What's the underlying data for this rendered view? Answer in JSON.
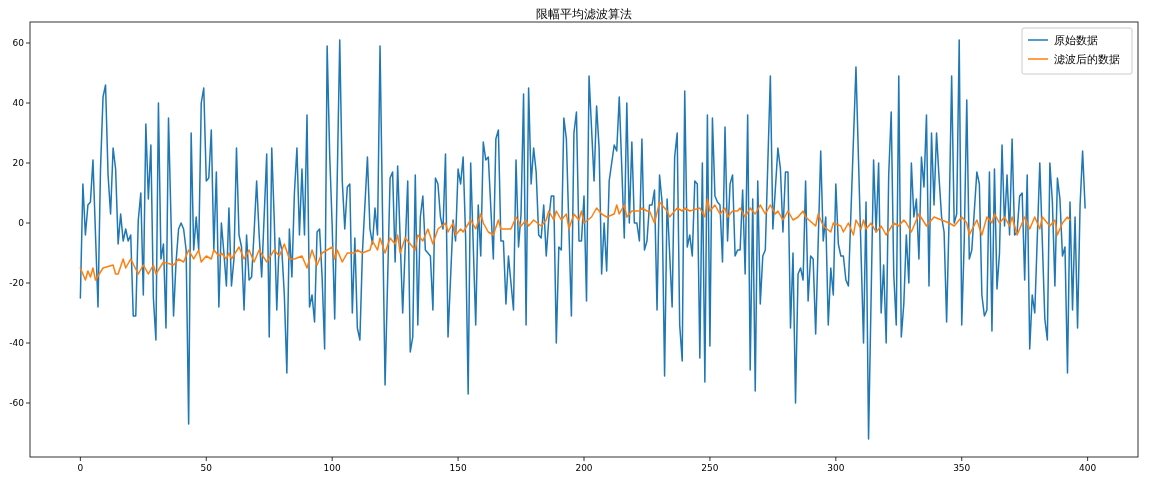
{
  "chart_data": {
    "type": "line",
    "title": "限幅平均滤波算法",
    "xlim": [
      -20,
      420
    ],
    "xticks": [
      0,
      50,
      100,
      150,
      200,
      250,
      300,
      350,
      400
    ],
    "ylim": [
      -78,
      67
    ],
    "yticks": [
      -60,
      -40,
      -20,
      0,
      20,
      40,
      60
    ],
    "legend": "top right",
    "grid": false,
    "line_style": "solid",
    "series": [
      {
        "name": "原始数据",
        "color": "#1f77b4",
        "x": [
          0,
          1,
          2,
          3,
          4,
          5,
          7,
          8,
          9,
          10,
          11,
          12,
          13,
          14,
          15,
          16,
          17,
          18,
          19,
          20,
          21,
          22,
          23,
          24,
          25,
          26,
          27,
          28,
          29,
          30,
          31,
          32,
          33,
          34,
          35,
          36,
          37,
          38,
          39,
          40,
          41,
          42,
          43,
          44,
          45,
          46,
          47,
          48,
          49,
          50,
          51,
          52,
          53,
          54,
          55,
          56,
          57,
          58,
          59,
          60,
          61,
          62,
          63,
          64,
          65,
          66,
          67,
          68,
          69,
          70,
          71,
          72,
          74,
          75,
          76,
          77,
          78,
          79,
          80,
          81,
          82,
          83,
          84,
          85,
          86,
          87,
          88,
          89,
          90,
          91,
          92,
          93,
          94,
          95,
          96,
          97,
          98,
          99,
          100,
          101,
          103,
          104,
          105,
          106,
          107,
          108,
          109,
          110,
          111,
          112,
          114,
          115,
          116,
          117,
          118,
          119,
          121,
          123,
          124,
          125,
          126,
          128,
          130,
          131,
          132,
          133,
          134,
          135,
          136,
          137,
          139,
          140,
          141,
          142,
          143,
          144,
          145,
          146,
          148,
          149,
          150,
          151,
          152,
          153,
          154,
          155,
          157,
          158,
          159,
          160,
          161,
          162,
          164,
          165,
          166,
          167,
          168,
          169,
          170,
          172,
          173,
          174,
          175,
          176,
          177,
          178,
          179,
          180,
          181,
          182,
          183,
          184,
          185,
          186,
          187,
          188,
          189,
          190,
          191,
          192,
          193,
          195,
          196,
          197,
          198,
          199,
          200,
          201,
          202,
          204,
          205,
          206,
          207,
          208,
          209,
          210,
          212,
          213,
          214,
          216,
          217,
          218,
          219,
          220,
          221,
          222,
          223,
          224,
          225,
          226,
          227,
          228,
          229,
          230,
          231,
          232,
          233,
          235,
          236,
          237,
          238,
          239,
          240,
          241,
          242,
          243,
          244,
          245,
          246,
          247,
          248,
          249,
          250,
          251,
          252,
          253,
          254,
          255,
          256,
          257,
          258,
          259,
          260,
          261,
          262,
          263,
          264,
          265,
          266,
          267,
          268,
          269,
          270,
          271,
          272,
          274,
          275,
          277,
          278,
          279,
          280,
          281,
          282,
          283,
          284,
          285,
          286,
          287,
          288,
          289,
          290,
          291,
          292,
          294,
          295,
          296,
          297,
          298,
          299,
          300,
          301,
          302,
          303,
          304,
          305,
          308,
          311,
          312,
          313,
          315,
          316,
          317,
          318,
          319,
          320,
          321,
          322,
          323,
          324,
          325,
          326,
          327,
          328,
          329,
          330,
          331,
          332,
          333,
          334,
          335,
          336,
          337,
          338,
          339,
          340,
          341,
          342,
          343,
          344,
          345,
          346,
          347,
          348,
          349,
          350,
          351,
          352,
          353,
          354,
          356,
          357,
          358,
          359,
          360,
          361,
          362,
          363,
          364,
          365,
          366,
          367,
          368,
          369,
          370,
          371,
          372,
          373,
          374,
          375,
          376,
          377,
          378,
          379,
          381,
          383,
          384,
          385,
          386,
          387,
          388,
          389,
          390,
          391,
          392,
          393,
          394,
          395,
          396,
          397,
          398,
          399
        ],
        "values": [
          -25,
          13,
          -4,
          6,
          7,
          21,
          -28,
          18,
          42,
          46,
          16,
          3,
          25,
          18,
          -7,
          3,
          -6,
          -2,
          -6,
          -4,
          -31,
          -31,
          1,
          10,
          -24,
          33,
          8,
          26,
          -25,
          -39,
          40,
          -12,
          -7,
          -35,
          35,
          1,
          -31,
          -13,
          -2,
          0,
          -2,
          -9,
          -67,
          30,
          -9,
          2,
          -9,
          40,
          45,
          14,
          15,
          31,
          -9,
          17,
          -28,
          0,
          -10,
          -21,
          5,
          -21,
          -12,
          25,
          -4,
          -8,
          -29,
          -4,
          -19,
          -18,
          -3,
          14,
          -4,
          -18,
          23,
          -38,
          25,
          1,
          -29,
          -5,
          -9,
          -24,
          -50,
          -2,
          -18,
          10,
          25,
          -4,
          18,
          -4,
          36,
          -28,
          -24,
          -33,
          -3,
          -2,
          -18,
          -42,
          59,
          23,
          -1,
          -32,
          61,
          14,
          -2,
          12,
          13,
          -30,
          -5,
          -35,
          -39,
          -10,
          22,
          -2,
          -7,
          5,
          -4,
          59,
          -54,
          15,
          17,
          -13,
          19,
          -30,
          14,
          -43,
          -38,
          16,
          -34,
          2,
          9,
          -9,
          -11,
          -29,
          15,
          13,
          2,
          -2,
          23,
          -38,
          1,
          -6,
          18,
          13,
          22,
          -5,
          -57,
          20,
          -34,
          6,
          -11,
          27,
          21,
          22,
          -12,
          28,
          31,
          -6,
          -6,
          -27,
          -11,
          -29,
          21,
          -8,
          3,
          43,
          -34,
          45,
          13,
          25,
          17,
          -4,
          -5,
          6,
          -11,
          1,
          9,
          9,
          -40,
          -8,
          -9,
          35,
          28,
          -31,
          30,
          37,
          -6,
          -6,
          9,
          -26,
          49,
          14,
          39,
          25,
          -17,
          0,
          -16,
          14,
          26,
          24,
          42,
          -5,
          40,
          0,
          27,
          0,
          0,
          -6,
          28,
          -9,
          -6,
          6,
          6,
          11,
          -29,
          16,
          7,
          -51,
          8,
          -28,
          22,
          30,
          -34,
          -46,
          44,
          -8,
          -4,
          -11,
          14,
          13,
          -45,
          20,
          -53,
          36,
          -41,
          35,
          9,
          7,
          6,
          -13,
          32,
          -6,
          13,
          16,
          -11,
          -9,
          -9,
          11,
          -17,
          36,
          -49,
          8,
          -56,
          14,
          -27,
          -11,
          -9,
          49,
          -2,
          25,
          18,
          -3,
          17,
          17,
          -35,
          -10,
          -60,
          -17,
          -15,
          -19,
          14,
          -26,
          -11,
          -12,
          -37,
          24,
          -6,
          2,
          -34,
          -15,
          -24,
          13,
          -7,
          -11,
          -11,
          -19,
          -21,
          52,
          -40,
          7,
          -72,
          21,
          -3,
          20,
          -30,
          -14,
          -40,
          16,
          37,
          -17,
          -34,
          49,
          -38,
          -27,
          -4,
          -20,
          20,
          2,
          8,
          -12,
          22,
          12,
          36,
          -21,
          30,
          6,
          30,
          15,
          2,
          -3,
          -33,
          2,
          49,
          0,
          3,
          61,
          -34,
          -6,
          41,
          -12,
          -9,
          17,
          13,
          -24,
          -31,
          -29,
          17,
          -36,
          18,
          -22,
          -10,
          26,
          -1,
          16,
          -4,
          28,
          -4,
          -3,
          9,
          10,
          -19,
          16,
          -42,
          -24,
          -30,
          20,
          -32,
          -39,
          20,
          7,
          -21,
          15,
          8,
          -11,
          -8,
          -50,
          7,
          -29,
          2,
          -35,
          6,
          24,
          5
        ]
      },
      {
        "name": "滤波后的数据",
        "color": "#ff7f0e",
        "x": [
          0,
          2,
          3,
          4,
          5,
          6,
          9,
          13,
          14,
          15,
          17,
          18,
          20,
          23,
          25,
          27,
          29,
          30,
          33,
          37,
          39,
          41,
          43,
          45,
          47,
          48,
          50,
          52,
          53,
          55,
          56,
          58,
          59,
          60,
          63,
          65,
          67,
          69,
          71,
          74,
          77,
          79,
          81,
          83,
          85,
          88,
          90,
          92,
          94,
          96,
          98,
          100,
          101,
          102,
          104,
          106,
          109,
          110,
          112,
          115,
          116,
          118,
          119,
          121,
          123,
          125,
          126,
          127,
          129,
          131,
          133,
          134,
          136,
          138,
          140,
          142,
          145,
          146,
          148,
          149,
          151,
          152,
          155,
          157,
          159,
          160,
          162,
          164,
          166,
          167,
          171,
          173,
          175,
          177,
          178,
          180,
          183,
          185,
          186,
          188,
          189,
          191,
          193,
          194,
          196,
          198,
          199,
          200,
          203,
          205,
          207,
          209,
          212,
          213,
          214,
          216,
          217,
          218,
          219,
          222,
          223,
          225,
          226,
          228,
          230,
          233,
          234,
          237,
          239,
          240,
          242,
          246,
          248,
          249,
          250,
          252,
          254,
          256,
          257,
          259,
          261,
          262,
          264,
          266,
          268,
          270,
          272,
          274,
          276,
          277,
          279,
          281,
          283,
          285,
          287,
          288,
          292,
          293,
          295,
          298,
          299,
          302,
          303,
          305,
          307,
          308,
          310,
          311,
          312,
          314,
          316,
          318,
          320,
          323,
          325,
          327,
          328,
          330,
          333,
          336,
          339,
          342,
          345,
          347,
          350,
          352,
          353,
          356,
          358,
          360,
          362,
          363,
          365,
          367,
          369,
          370,
          372,
          375,
          377,
          379,
          381,
          382,
          385,
          387,
          388,
          390,
          392,
          393
        ],
        "values": [
          -15,
          -19,
          -16,
          -18,
          -15,
          -19,
          -15,
          -14,
          -17,
          -17,
          -12,
          -15,
          -12,
          -17,
          -14,
          -17,
          -14,
          -17,
          -13,
          -14,
          -12,
          -13,
          -9,
          -12,
          -9,
          -13,
          -11,
          -12,
          -9,
          -11,
          -10,
          -12,
          -10,
          -12,
          -8,
          -12,
          -9,
          -13,
          -9,
          -13,
          -9,
          -11,
          -7,
          -12,
          -12,
          -11,
          -15,
          -9,
          -14,
          -10,
          -9,
          -8,
          -12,
          -9,
          -13,
          -10,
          -10,
          -9,
          -10,
          -9,
          -6,
          -9,
          -5,
          -10,
          -5,
          -7,
          -4,
          -10,
          -5,
          -7,
          -9,
          -4,
          -6,
          -2,
          -7,
          -2,
          0,
          -3,
          0,
          -4,
          -2,
          -3,
          1,
          -2,
          3,
          0,
          -3,
          -4,
          1,
          -2,
          -2,
          2,
          -1,
          1,
          -1,
          1,
          -1,
          1,
          4,
          1,
          4,
          1,
          3,
          -2,
          3,
          1,
          4,
          0,
          2,
          5,
          3,
          2,
          3,
          6,
          3,
          6,
          2,
          3,
          4,
          4,
          5,
          4,
          4,
          0,
          7,
          4,
          2,
          5,
          4,
          5,
          4,
          5,
          2,
          8,
          4,
          6,
          3,
          5,
          2,
          4,
          4,
          5,
          2,
          5,
          3,
          6,
          3,
          6,
          3,
          4,
          1,
          4,
          1,
          2,
          4,
          2,
          -1,
          3,
          -1,
          -3,
          0,
          -1,
          -3,
          0,
          -4,
          1,
          -2,
          1,
          -2,
          0,
          -3,
          -1,
          -4,
          0,
          -1,
          1,
          0,
          -3,
          3,
          -1,
          2,
          1,
          0,
          -1,
          2,
          0,
          -4,
          1,
          -4,
          2,
          0,
          3,
          0,
          2,
          -1,
          2,
          -4,
          2,
          -2,
          2,
          -2,
          2,
          -1,
          1,
          -4,
          0,
          2,
          1
        ]
      }
    ]
  }
}
